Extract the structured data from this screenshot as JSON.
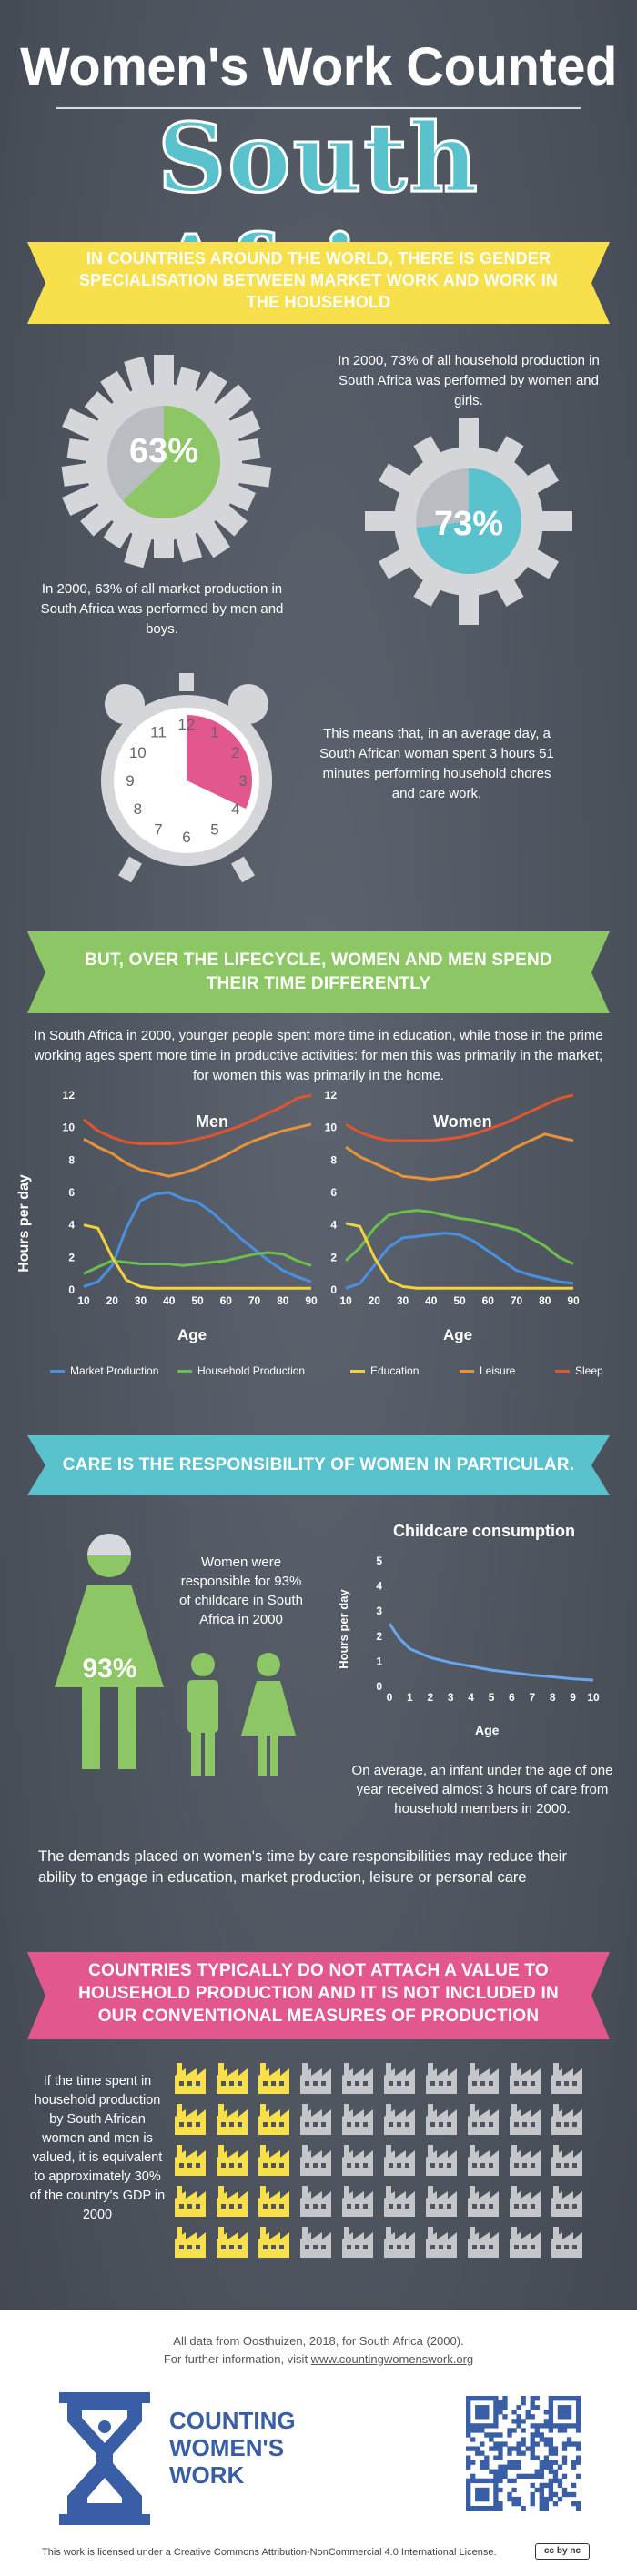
{
  "title": {
    "line1": "Women's Work Counted",
    "line2": "South Africa"
  },
  "banners": {
    "b1": "IN COUNTRIES AROUND THE WORLD, THERE IS GENDER SPECIALISATION BETWEEN MARKET WORK AND WORK IN THE HOUSEHOLD",
    "b2": "BUT, OVER THE LIFECYCLE, WOMEN AND MEN SPEND THEIR TIME DIFFERENTLY",
    "b3": "CARE IS THE RESPONSIBILITY OF WOMEN IN PARTICULAR.",
    "b4": "COUNTRIES TYPICALLY DO NOT ATTACH A VALUE TO HOUSEHOLD PRODUCTION AND IT IS NOT INCLUDED IN OUR CONVENTIONAL MEASURES OF PRODUCTION"
  },
  "stats": {
    "market_pct": "63%",
    "market_value": 0.63,
    "market_caption": "In 2000, 63% of all market production in South Africa was performed by men and boys.",
    "household_pct": "73%",
    "household_value": 0.73,
    "household_caption": "In 2000, 73% of all household production in South Africa was performed by women and girls.",
    "clock_caption": "This means that, in an average day, a South African woman spent 3 hours 51 minutes performing household chores and care work.",
    "clock_numbers": [
      "12",
      "1",
      "2",
      "3",
      "4",
      "5",
      "6",
      "7",
      "8",
      "9",
      "10",
      "11"
    ],
    "clock_hours": 3.85
  },
  "lifecycle_intro": "In South Africa in 2000, younger people spent more time in education, while those in the prime working ages spent more time in productive activities: for men this was primarily in the market; for women this was primarily in the home.",
  "colors": {
    "teal": "#5ac2cd",
    "green": "#8cc665",
    "yellow": "#f7e04b",
    "pink": "#e1578e",
    "bar_green": "#9cd36a",
    "dark": "#4e5560",
    "market": "#4a90e2",
    "household": "#6cbf4e",
    "education": "#f2d23c",
    "leisure": "#e8923a",
    "sleep": "#e0552d"
  },
  "chart_data": [
    {
      "type": "line",
      "title": "Men",
      "xlabel": "Age",
      "ylabel": "Hours per day",
      "xlim": [
        10,
        90
      ],
      "ylim": [
        0,
        12
      ],
      "xticks": [
        "10",
        "20",
        "30",
        "40",
        "50",
        "60",
        "70",
        "80",
        "90"
      ],
      "yticks": [
        "0",
        "2",
        "4",
        "6",
        "8",
        "10",
        "12"
      ],
      "x": [
        10,
        15,
        20,
        25,
        30,
        35,
        40,
        45,
        50,
        55,
        60,
        65,
        70,
        75,
        80,
        85,
        90
      ],
      "series": [
        {
          "name": "Market Production",
          "values": [
            0.2,
            0.5,
            1.5,
            3.8,
            5.5,
            5.9,
            6.0,
            5.6,
            5.4,
            4.8,
            4.0,
            3.2,
            2.5,
            1.8,
            1.2,
            0.8,
            0.5
          ]
        },
        {
          "name": "Household Production",
          "values": [
            1.0,
            1.4,
            1.8,
            1.7,
            1.6,
            1.6,
            1.6,
            1.5,
            1.6,
            1.7,
            1.8,
            2.0,
            2.2,
            2.3,
            2.2,
            1.8,
            1.5
          ]
        },
        {
          "name": "Education",
          "values": [
            4.0,
            3.8,
            2.0,
            0.6,
            0.2,
            0.1,
            0.1,
            0.1,
            0.1,
            0.1,
            0.1,
            0.1,
            0.1,
            0.1,
            0.1,
            0.1,
            0.1
          ]
        },
        {
          "name": "Leisure",
          "values": [
            9.3,
            8.8,
            8.4,
            7.8,
            7.4,
            7.2,
            7.0,
            7.2,
            7.5,
            7.9,
            8.3,
            8.8,
            9.2,
            9.5,
            9.8,
            10.0,
            10.2
          ]
        },
        {
          "name": "Sleep",
          "values": [
            10.5,
            9.8,
            9.4,
            9.1,
            9.0,
            9.0,
            9.0,
            9.1,
            9.3,
            9.5,
            9.8,
            10.1,
            10.5,
            10.9,
            11.3,
            11.8,
            12.0
          ]
        }
      ]
    },
    {
      "type": "line",
      "title": "Women",
      "xlabel": "Age",
      "ylabel": "",
      "xlim": [
        10,
        90
      ],
      "ylim": [
        0,
        12
      ],
      "xticks": [
        "10",
        "20",
        "30",
        "40",
        "50",
        "60",
        "70",
        "80",
        "90"
      ],
      "yticks": [
        "0",
        "2",
        "4",
        "6",
        "8",
        "10",
        "12"
      ],
      "x": [
        10,
        15,
        20,
        25,
        30,
        35,
        40,
        45,
        50,
        55,
        60,
        65,
        70,
        75,
        80,
        85,
        90
      ],
      "series": [
        {
          "name": "Market Production",
          "values": [
            0.1,
            0.4,
            1.5,
            2.6,
            3.2,
            3.3,
            3.4,
            3.5,
            3.4,
            3.0,
            2.4,
            1.8,
            1.2,
            0.9,
            0.7,
            0.5,
            0.4
          ]
        },
        {
          "name": "Household Production",
          "values": [
            1.8,
            2.6,
            3.8,
            4.6,
            4.8,
            4.9,
            4.8,
            4.6,
            4.4,
            4.3,
            4.1,
            3.9,
            3.7,
            3.2,
            2.7,
            2.0,
            1.6
          ]
        },
        {
          "name": "Education",
          "values": [
            4.1,
            3.9,
            2.0,
            0.6,
            0.2,
            0.1,
            0.1,
            0.1,
            0.1,
            0.1,
            0.1,
            0.1,
            0.1,
            0.1,
            0.1,
            0.1,
            0.1
          ]
        },
        {
          "name": "Leisure",
          "values": [
            8.8,
            8.2,
            7.8,
            7.4,
            7.0,
            6.9,
            6.8,
            6.9,
            7.0,
            7.3,
            7.8,
            8.3,
            8.8,
            9.2,
            9.6,
            9.4,
            9.2
          ]
        },
        {
          "name": "Sleep",
          "values": [
            10.2,
            9.7,
            9.4,
            9.2,
            9.2,
            9.2,
            9.2,
            9.3,
            9.4,
            9.6,
            9.9,
            10.2,
            10.6,
            11.0,
            11.4,
            11.8,
            12.0
          ]
        }
      ]
    },
    {
      "type": "line",
      "title": "Childcare consumption",
      "xlabel": "Age",
      "ylabel": "Hours per day",
      "xlim": [
        0,
        10
      ],
      "ylim": [
        0,
        5
      ],
      "xticks": [
        "0",
        "1",
        "2",
        "3",
        "4",
        "5",
        "6",
        "7",
        "8",
        "9",
        "10"
      ],
      "yticks": [
        "0",
        "1",
        "2",
        "3",
        "4",
        "5"
      ],
      "x": [
        0,
        0.5,
        1,
        2,
        3,
        4,
        5,
        6,
        7,
        8,
        9,
        10
      ],
      "series": [
        {
          "name": "Childcare",
          "values": [
            2.5,
            1.9,
            1.5,
            1.15,
            0.95,
            0.8,
            0.65,
            0.55,
            0.45,
            0.38,
            0.3,
            0.25
          ]
        }
      ]
    }
  ],
  "legend": [
    "Market Production",
    "Household Production",
    "Education",
    "Leisure",
    "Sleep"
  ],
  "care": {
    "women_text": "Women were responsible for 93% of childcare in South Africa in 2000",
    "pct": "93%",
    "infant_caption": "On average, an infant under the age of one year received almost 3 hours of care from household members in 2000.",
    "demands": "The demands placed on women's time by care responsibilities may reduce their ability to engage in education, market production, leisure or personal care"
  },
  "gdp": {
    "text": "If the time spent in household production by South African women and men is valued, it is equivalent to approximately 30% of the country's GDP in 2000",
    "share": 0.3
  },
  "footer": {
    "source": "All data from Oosthuizen, 2018, for South Africa (2000).",
    "visit_prefix": "For further information, visit ",
    "url": "www.countingwomenswork.org",
    "logo_lines": [
      "COUNTING",
      "WOMEN'S",
      "WORK"
    ],
    "license": "This work is licensed under a Creative Commons Attribution-NonCommercial 4.0 International License.",
    "cc_badge": "cc by nc"
  }
}
